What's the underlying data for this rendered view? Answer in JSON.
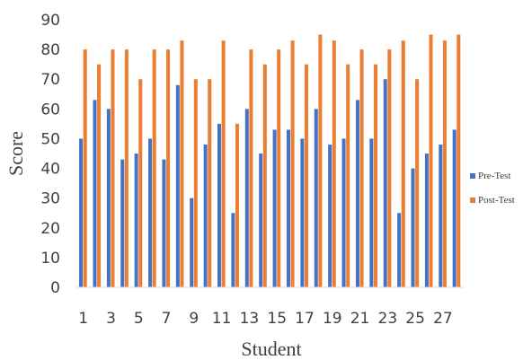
{
  "chart_data": {
    "type": "bar",
    "title": "",
    "xlabel": "Student",
    "ylabel": "Score",
    "ylim": [
      0,
      90
    ],
    "yticks": [
      0,
      10,
      20,
      30,
      40,
      50,
      60,
      70,
      80,
      90
    ],
    "categories": [
      1,
      2,
      3,
      4,
      5,
      6,
      7,
      8,
      9,
      10,
      11,
      12,
      13,
      14,
      15,
      16,
      17,
      18,
      19,
      20,
      21,
      22,
      23,
      24,
      25,
      26,
      27,
      28
    ],
    "xtick_labels": [
      "1",
      "3",
      "5",
      "7",
      "9",
      "11",
      "13",
      "15",
      "17",
      "19",
      "21",
      "23",
      "25",
      "27"
    ],
    "legend_position": "right",
    "grid": false,
    "series": [
      {
        "name": "Pre-Test",
        "color": "#4472C4",
        "values": [
          50,
          63,
          60,
          43,
          45,
          50,
          43,
          68,
          30,
          48,
          55,
          25,
          60,
          45,
          53,
          53,
          50,
          60,
          48,
          50,
          63,
          50,
          70,
          25,
          40,
          45,
          48,
          53
        ]
      },
      {
        "name": "Post-Test",
        "color": "#ED7D31",
        "values": [
          80,
          75,
          80,
          80,
          70,
          80,
          80,
          83,
          70,
          70,
          83,
          55,
          80,
          75,
          80,
          83,
          75,
          85,
          83,
          75,
          80,
          75,
          80,
          83,
          70,
          85,
          83,
          85
        ]
      }
    ]
  }
}
